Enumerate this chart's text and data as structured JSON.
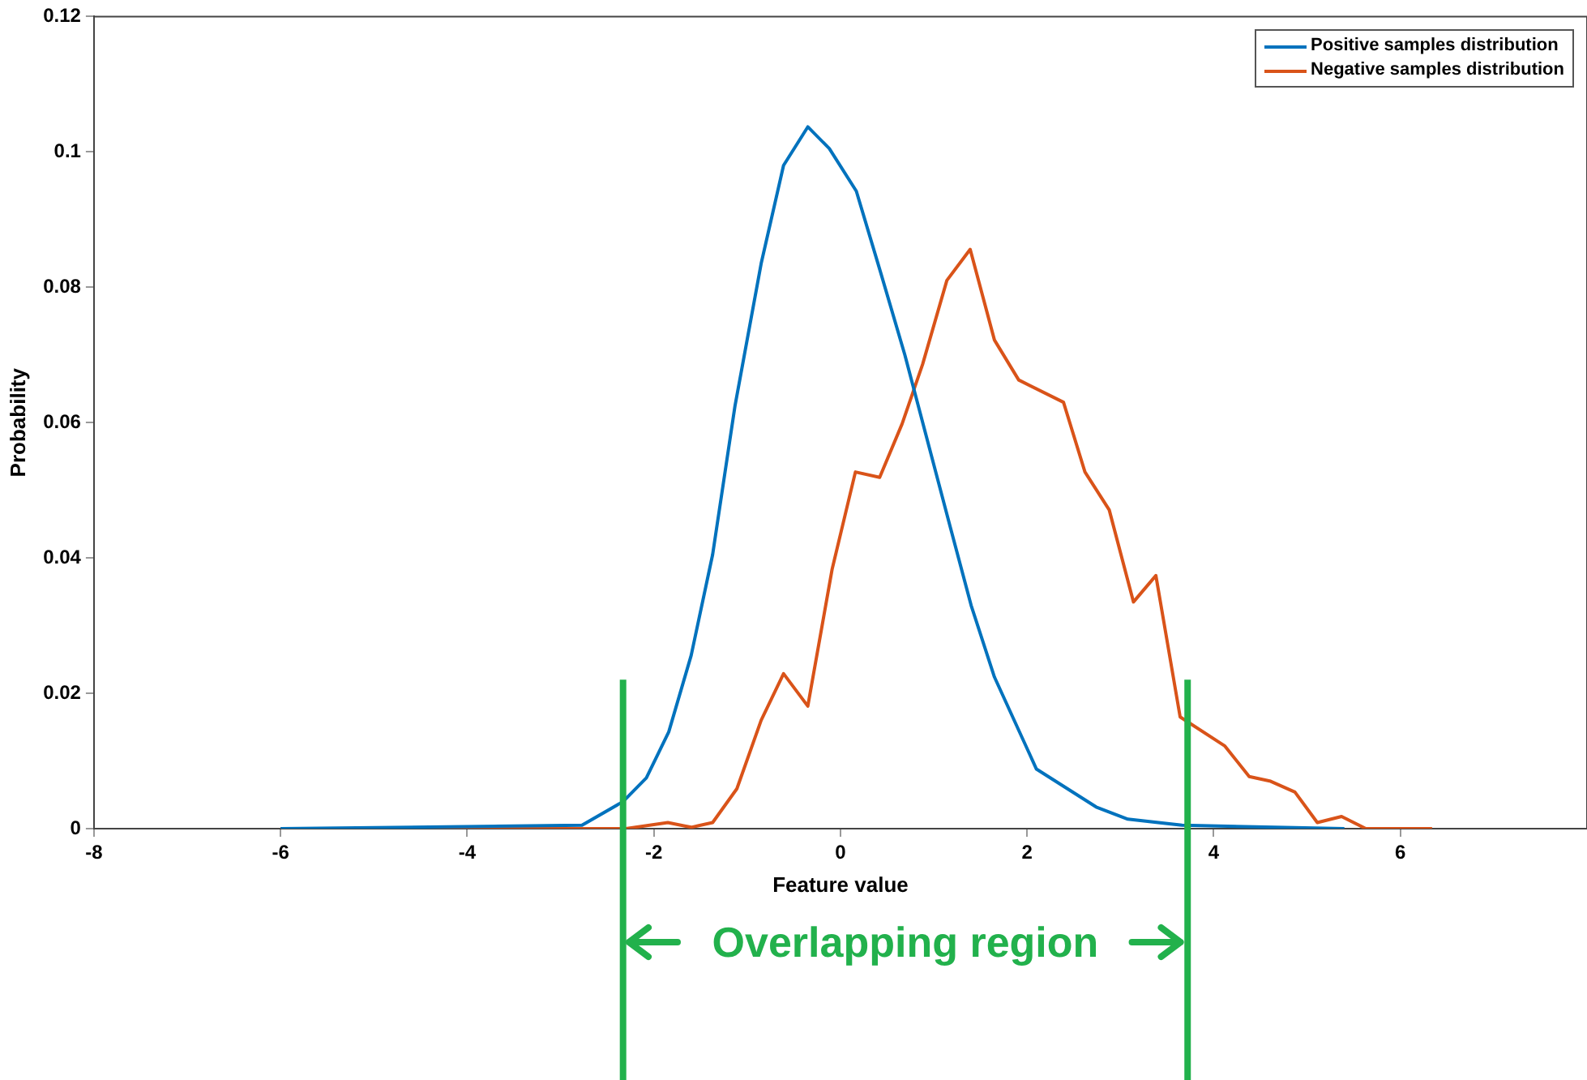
{
  "chart_data": {
    "type": "line",
    "xlabel": "Feature value",
    "ylabel": "Probability",
    "xlim": [
      -8,
      8
    ],
    "xticks": [
      -8,
      -6,
      -4,
      -2,
      0,
      2,
      4,
      6
    ],
    "ylim": [
      0,
      0.12
    ],
    "yticks": [
      0,
      0.02,
      0.04,
      0.06,
      0.08,
      0.1,
      0.12
    ],
    "grid": false,
    "legend": "top right",
    "marker": "none",
    "line_style": "solid",
    "series": [
      {
        "name": "Positive samples distribution",
        "color": "#0072bd",
        "x": [
          -6,
          -2.77,
          -2.33,
          -2.08,
          -1.84,
          -1.6,
          -1.37,
          -1.13,
          -0.85,
          -0.61,
          -0.35,
          -0.12,
          0.17,
          0.43,
          0.69,
          0.95,
          1.18,
          1.4,
          1.65,
          2.1,
          2.74,
          3.08,
          3.66,
          5.4
        ],
        "values": [
          0,
          0.0005,
          0.004,
          0.0075,
          0.0143,
          0.0256,
          0.0405,
          0.0625,
          0.0835,
          0.098,
          0.1037,
          0.1005,
          0.0942,
          0.0822,
          0.07,
          0.0564,
          0.0444,
          0.033,
          0.0224,
          0.0088,
          0.0032,
          0.0014,
          0.0005,
          0
        ]
      },
      {
        "name": "Negative samples distribution",
        "color": "#d95319",
        "x": [
          -6,
          -2.3,
          -1.85,
          -1.6,
          -1.37,
          -1.11,
          -0.85,
          -0.61,
          -0.35,
          -0.09,
          0.16,
          0.42,
          0.66,
          0.88,
          1.14,
          1.39,
          1.65,
          1.91,
          2.39,
          2.62,
          2.88,
          3.14,
          3.38,
          3.64,
          4.12,
          4.38,
          4.61,
          4.87,
          5.11,
          5.37,
          5.63,
          6.34
        ],
        "values": [
          0,
          0,
          0.0009,
          0.0002,
          0.0009,
          0.0059,
          0.016,
          0.0229,
          0.0181,
          0.0383,
          0.0527,
          0.0519,
          0.0598,
          0.0686,
          0.081,
          0.0856,
          0.0722,
          0.0663,
          0.063,
          0.0527,
          0.0471,
          0.0335,
          0.0374,
          0.0165,
          0.0122,
          0.0077,
          0.007,
          0.0054,
          0.0009,
          0.0018,
          0,
          0
        ]
      }
    ],
    "ref_lines": [
      {
        "axis": "x",
        "value": -2.33,
        "label": null,
        "color": "#22b14c"
      },
      {
        "axis": "x",
        "value": 3.72,
        "label": null,
        "color": "#22b14c"
      }
    ],
    "annotations": [
      "Overlapping region"
    ]
  }
}
